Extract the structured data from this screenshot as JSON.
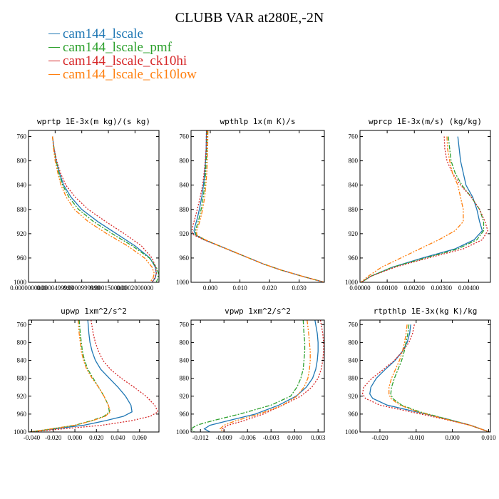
{
  "title": "CLUBB VAR at280E,-2N",
  "legend": [
    {
      "name": "cam144_lscale",
      "color": "#1f77b4",
      "dash": ""
    },
    {
      "name": "cam144_lscale_pmf",
      "color": "#2ca02c",
      "dash": "6,2,2,2"
    },
    {
      "name": "cam144_lscale_ck10hi",
      "color": "#d62728",
      "dash": "2,2"
    },
    {
      "name": "cam144_lscale_ck10low",
      "color": "#ff7f0e",
      "dash": "6,2,2,2,2,2"
    }
  ],
  "chart_data": [
    {
      "type": "line",
      "title": "wprtp  1E-3x(m kg)/(s kg)",
      "xlim": [
        0.0,
        0.000245
      ],
      "xticks": [
        0.0,
        5e-05,
        0.0001,
        0.00015,
        0.0002
      ],
      "xtick_labels": [
        "0.0000000000",
        "0.0000499999",
        "0.0000999999",
        "0.0001500000",
        "0.0002000000"
      ],
      "ylim": [
        1000,
        750
      ],
      "yticks": [
        760,
        800,
        840,
        880,
        920,
        960,
        1000
      ],
      "p": [
        760,
        780,
        800,
        820,
        840,
        860,
        880,
        900,
        920,
        940,
        960,
        975,
        985,
        993,
        1000
      ],
      "series": [
        {
          "name": "cam144_lscale",
          "x": [
            4.5e-05,
            4.8e-05,
            5.2e-05,
            5.8e-05,
            6.6e-05,
            8e-05,
            0.0001,
            0.00013,
            0.000165,
            0.0002,
            0.000228,
            0.000238,
            0.00024,
            0.000238,
            0.000232
          ]
        },
        {
          "name": "cam144_lscale_pmf",
          "x": [
            4.5e-05,
            4.8e-05,
            5.2e-05,
            5.7e-05,
            6.4e-05,
            7.6e-05,
            9.4e-05,
            0.000122,
            0.000157,
            0.000195,
            0.000227,
            0.00024,
            0.000244,
            0.000243,
            0.00024
          ]
        },
        {
          "name": "cam144_lscale_ck10hi",
          "x": [
            4.5e-05,
            4.8e-05,
            5.3e-05,
            6e-05,
            7e-05,
            8.8e-05,
            0.000112,
            0.000145,
            0.00018,
            0.000212,
            0.000232,
            0.000239,
            0.00024,
            0.000237,
            0.000232
          ]
        },
        {
          "name": "cam144_lscale_ck10low",
          "x": [
            4.5e-05,
            4.7e-05,
            5e-05,
            5.5e-05,
            6.1e-05,
            7.1e-05,
            8.6e-05,
            0.000112,
            0.000147,
            0.000186,
            0.000218,
            0.000232,
            0.000236,
            0.000234,
            0.000228
          ]
        }
      ]
    },
    {
      "type": "line",
      "title": "wpthlp  1x(m K)/s",
      "xlim": [
        -0.0065,
        0.0385
      ],
      "xticks": [
        0.0,
        0.01,
        0.02,
        0.03
      ],
      "xtick_labels": [
        "0.000",
        "0.010",
        "0.020",
        "0.030"
      ],
      "ylim": [
        1000,
        750
      ],
      "yticks": [
        760,
        800,
        840,
        880,
        920,
        960,
        1000
      ],
      "p": [
        750,
        780,
        800,
        820,
        840,
        860,
        880,
        895,
        905,
        915,
        922,
        930,
        940,
        950,
        960,
        970,
        980,
        990,
        1000
      ],
      "series": [
        {
          "name": "cam144_lscale",
          "x": [
            -0.0013,
            -0.0014,
            -0.0016,
            -0.0019,
            -0.0023,
            -0.0029,
            -0.0037,
            -0.0044,
            -0.005,
            -0.0055,
            -0.005,
            -0.002,
            0.003,
            0.008,
            0.013,
            0.018,
            0.024,
            0.031,
            0.0385
          ]
        },
        {
          "name": "cam144_lscale_pmf",
          "x": [
            -0.0011,
            -0.0012,
            -0.0014,
            -0.0016,
            -0.0019,
            -0.0024,
            -0.0031,
            -0.0038,
            -0.0044,
            -0.005,
            -0.0048,
            -0.0018,
            0.003,
            0.008,
            0.013,
            0.018,
            0.024,
            0.031,
            0.0385
          ]
        },
        {
          "name": "cam144_lscale_ck10hi",
          "x": [
            -0.0013,
            -0.0014,
            -0.0017,
            -0.0021,
            -0.0026,
            -0.0034,
            -0.0044,
            -0.0052,
            -0.0058,
            -0.0062,
            -0.0056,
            -0.0022,
            0.003,
            0.008,
            0.013,
            0.018,
            0.024,
            0.031,
            0.0385
          ]
        },
        {
          "name": "cam144_lscale_ck10low",
          "x": [
            -0.0008,
            -0.0009,
            -0.001,
            -0.0012,
            -0.0015,
            -0.0019,
            -0.0026,
            -0.0033,
            -0.0039,
            -0.0046,
            -0.0046,
            -0.0017,
            0.003,
            0.008,
            0.013,
            0.018,
            0.024,
            0.031,
            0.0385
          ]
        }
      ]
    },
    {
      "type": "line",
      "title": "wprcp  1E-3x(m/s) (kg/kg)",
      "xlim": [
        0.0,
        0.0048
      ],
      "xticks": [
        0.0,
        0.001,
        0.002,
        0.003,
        0.004
      ],
      "xtick_labels": [
        "0.00000",
        "0.00100",
        "0.00200",
        "0.00300",
        "0.00400"
      ],
      "ylim": [
        1000,
        750
      ],
      "yticks": [
        760,
        800,
        840,
        880,
        920,
        960,
        1000
      ],
      "p": [
        760,
        780,
        800,
        820,
        840,
        860,
        880,
        900,
        915,
        930,
        945,
        960,
        975,
        990,
        1000
      ],
      "series": [
        {
          "name": "cam144_lscale",
          "x": [
            0.0036,
            0.00365,
            0.0037,
            0.0038,
            0.0039,
            0.00415,
            0.0043,
            0.0044,
            0.0045,
            0.0042,
            0.0035,
            0.0023,
            0.0012,
            0.0004,
            5e-05
          ]
        },
        {
          "name": "cam144_lscale_pmf",
          "x": [
            0.00325,
            0.0033,
            0.00335,
            0.0035,
            0.00375,
            0.0041,
            0.0044,
            0.00455,
            0.00455,
            0.0043,
            0.0036,
            0.0024,
            0.0012,
            0.0004,
            5e-05
          ]
        },
        {
          "name": "cam144_lscale_ck10hi",
          "x": [
            0.0031,
            0.00312,
            0.0032,
            0.0034,
            0.0037,
            0.0041,
            0.0044,
            0.0046,
            0.0047,
            0.0045,
            0.0038,
            0.0025,
            0.0013,
            0.0004,
            5e-05
          ]
        },
        {
          "name": "cam144_lscale_ck10low",
          "x": [
            0.0032,
            0.00322,
            0.0033,
            0.0034,
            0.0036,
            0.0037,
            0.0038,
            0.0038,
            0.0035,
            0.0029,
            0.0022,
            0.0015,
            0.0008,
            0.0003,
            3e-05
          ]
        }
      ]
    },
    {
      "type": "line",
      "title": "upwp  1xm^2/s^2",
      "xlim": [
        -0.043,
        0.078
      ],
      "xticks": [
        -0.04,
        -0.02,
        0.0,
        0.02,
        0.04,
        0.06
      ],
      "xtick_labels": [
        "-0.040",
        "-0.020",
        "0.000",
        "0.020",
        "0.040",
        "0.060"
      ],
      "ylim": [
        1000,
        750
      ],
      "yticks": [
        760,
        800,
        840,
        880,
        920,
        960,
        1000
      ],
      "p": [
        750,
        780,
        800,
        820,
        840,
        860,
        880,
        900,
        920,
        940,
        955,
        965,
        975,
        985,
        995,
        1000
      ],
      "series": [
        {
          "name": "cam144_lscale",
          "x": [
            0.012,
            0.013,
            0.014,
            0.016,
            0.019,
            0.024,
            0.032,
            0.04,
            0.047,
            0.052,
            0.053,
            0.045,
            0.028,
            0.008,
            -0.025,
            -0.042
          ]
        },
        {
          "name": "cam144_lscale_pmf",
          "x": [
            0.004,
            0.005,
            0.006,
            0.007,
            0.009,
            0.012,
            0.017,
            0.022,
            0.027,
            0.031,
            0.032,
            0.027,
            0.015,
            0.0,
            -0.027,
            -0.042
          ]
        },
        {
          "name": "cam144_lscale_ck10hi",
          "x": [
            0.015,
            0.017,
            0.019,
            0.022,
            0.026,
            0.033,
            0.043,
            0.055,
            0.066,
            0.074,
            0.077,
            0.07,
            0.052,
            0.025,
            -0.02,
            -0.042
          ]
        },
        {
          "name": "cam144_lscale_ck10low",
          "x": [
            0.003,
            0.004,
            0.005,
            0.006,
            0.008,
            0.011,
            0.016,
            0.022,
            0.027,
            0.031,
            0.033,
            0.028,
            0.016,
            0.0,
            -0.027,
            -0.042
          ]
        }
      ]
    },
    {
      "type": "line",
      "title": "vpwp  1xm^2/s^2",
      "xlim": [
        -0.0132,
        0.0038
      ],
      "xticks": [
        -0.012,
        -0.009,
        -0.006,
        -0.003,
        0.0,
        0.003
      ],
      "xtick_labels": [
        "-0.012",
        "-0.009",
        "-0.006",
        "-0.003",
        "0.000",
        "0.003"
      ],
      "ylim": [
        1000,
        750
      ],
      "yticks": [
        760,
        800,
        840,
        880,
        920,
        960,
        1000
      ],
      "p": [
        750,
        780,
        800,
        820,
        840,
        860,
        880,
        900,
        920,
        940,
        960,
        975,
        985,
        993,
        1000
      ],
      "series": [
        {
          "name": "cam144_lscale",
          "x": [
            0.0026,
            0.0029,
            0.003,
            0.003,
            0.0029,
            0.0027,
            0.0023,
            0.0015,
            0.0002,
            -0.002,
            -0.005,
            -0.0085,
            -0.0108,
            -0.0115,
            -0.0108
          ]
        },
        {
          "name": "cam144_lscale_pmf",
          "x": [
            0.0011,
            0.0012,
            0.0013,
            0.0013,
            0.0012,
            0.0011,
            0.0008,
            0.0003,
            -0.0005,
            -0.003,
            -0.007,
            -0.0105,
            -0.0125,
            -0.0132,
            -0.0128
          ]
        },
        {
          "name": "cam144_lscale_ck10hi",
          "x": [
            0.0033,
            0.0036,
            0.0037,
            0.0037,
            0.0036,
            0.0034,
            0.003,
            0.0022,
            0.0008,
            -0.0015,
            -0.004,
            -0.0065,
            -0.0085,
            -0.0092,
            -0.0088
          ]
        },
        {
          "name": "cam144_lscale_ck10low",
          "x": [
            0.0016,
            0.0018,
            0.0019,
            0.002,
            0.002,
            0.0019,
            0.0017,
            0.0012,
            0.0003,
            -0.0015,
            -0.0045,
            -0.0075,
            -0.009,
            -0.0095,
            -0.009
          ]
        }
      ]
    },
    {
      "type": "line",
      "title": "rtpthlp  1E-3x(kg K)/kg",
      "xlim": [
        -0.0255,
        0.0105
      ],
      "xticks": [
        -0.02,
        -0.01,
        0.0,
        0.01
      ],
      "xtick_labels": [
        "-0.020",
        "-0.010",
        "0.000",
        "0.010"
      ],
      "ylim": [
        1000,
        750
      ],
      "yticks": [
        760,
        800,
        840,
        880,
        920,
        960,
        1000
      ],
      "p": [
        760,
        780,
        800,
        820,
        840,
        860,
        880,
        900,
        915,
        925,
        940,
        955,
        970,
        985,
        1000
      ],
      "series": [
        {
          "name": "cam144_lscale",
          "x": [
            -0.0115,
            -0.0118,
            -0.0125,
            -0.0138,
            -0.0158,
            -0.0185,
            -0.021,
            -0.0225,
            -0.0228,
            -0.022,
            -0.018,
            -0.01,
            -0.002,
            0.005,
            0.0102
          ]
        },
        {
          "name": "cam144_lscale_pmf",
          "x": [
            -0.012,
            -0.0123,
            -0.0128,
            -0.0133,
            -0.014,
            -0.015,
            -0.016,
            -0.0168,
            -0.017,
            -0.0165,
            -0.014,
            -0.009,
            -0.002,
            0.005,
            0.0102
          ]
        },
        {
          "name": "cam144_lscale_ck10hi",
          "x": [
            -0.0105,
            -0.011,
            -0.012,
            -0.0138,
            -0.016,
            -0.019,
            -0.0222,
            -0.0245,
            -0.0248,
            -0.024,
            -0.02,
            -0.0115,
            -0.003,
            0.005,
            0.0102
          ]
        },
        {
          "name": "cam144_lscale_ck10low",
          "x": [
            -0.0125,
            -0.0128,
            -0.0132,
            -0.0138,
            -0.0146,
            -0.0157,
            -0.0168,
            -0.0175,
            -0.0175,
            -0.017,
            -0.0145,
            -0.0095,
            -0.0025,
            0.0048,
            0.0102
          ]
        }
      ]
    }
  ]
}
